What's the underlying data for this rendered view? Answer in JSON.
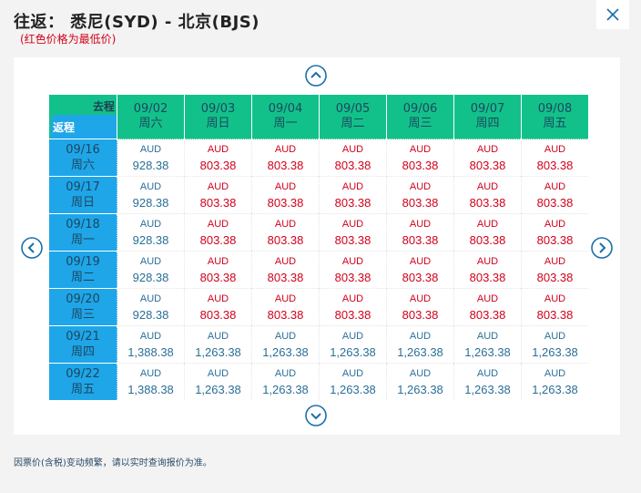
{
  "header": {
    "title": "往返：  悉尼(SYD) - 北京(BJS)",
    "subtitle": "(红色价格为最低价)"
  },
  "colors": {
    "low_price": "#d0021b",
    "normal_price": "#2a6f97",
    "depart_header": "#12c18a",
    "return_header": "#1ea6e8",
    "nav_icon": "#1a6fa8"
  },
  "icons": {
    "close": "close-icon",
    "up": "chevron-up-icon",
    "down": "chevron-down-icon",
    "left": "chevron-left-icon",
    "right": "chevron-right-icon"
  },
  "grid": {
    "depart_label": "去程",
    "return_label": "返程",
    "depart_dates": [
      {
        "date": "09/02",
        "weekday": "周六"
      },
      {
        "date": "09/03",
        "weekday": "周日"
      },
      {
        "date": "09/04",
        "weekday": "周一"
      },
      {
        "date": "09/05",
        "weekday": "周二"
      },
      {
        "date": "09/06",
        "weekday": "周三"
      },
      {
        "date": "09/07",
        "weekday": "周四"
      },
      {
        "date": "09/08",
        "weekday": "周五"
      }
    ],
    "rows": [
      {
        "date": "09/16",
        "weekday": "周六",
        "cells": [
          {
            "cur": "AUD",
            "price": "928.38",
            "low": false
          },
          {
            "cur": "AUD",
            "price": "803.38",
            "low": true
          },
          {
            "cur": "AUD",
            "price": "803.38",
            "low": true
          },
          {
            "cur": "AUD",
            "price": "803.38",
            "low": true
          },
          {
            "cur": "AUD",
            "price": "803.38",
            "low": true
          },
          {
            "cur": "AUD",
            "price": "803.38",
            "low": true
          },
          {
            "cur": "AUD",
            "price": "803.38",
            "low": true
          }
        ]
      },
      {
        "date": "09/17",
        "weekday": "周日",
        "cells": [
          {
            "cur": "AUD",
            "price": "928.38",
            "low": false
          },
          {
            "cur": "AUD",
            "price": "803.38",
            "low": true
          },
          {
            "cur": "AUD",
            "price": "803.38",
            "low": true
          },
          {
            "cur": "AUD",
            "price": "803.38",
            "low": true
          },
          {
            "cur": "AUD",
            "price": "803.38",
            "low": true
          },
          {
            "cur": "AUD",
            "price": "803.38",
            "low": true
          },
          {
            "cur": "AUD",
            "price": "803.38",
            "low": true
          }
        ]
      },
      {
        "date": "09/18",
        "weekday": "周一",
        "cells": [
          {
            "cur": "AUD",
            "price": "928.38",
            "low": false
          },
          {
            "cur": "AUD",
            "price": "803.38",
            "low": true
          },
          {
            "cur": "AUD",
            "price": "803.38",
            "low": true
          },
          {
            "cur": "AUD",
            "price": "803.38",
            "low": true
          },
          {
            "cur": "AUD",
            "price": "803.38",
            "low": true
          },
          {
            "cur": "AUD",
            "price": "803.38",
            "low": true
          },
          {
            "cur": "AUD",
            "price": "803.38",
            "low": true
          }
        ]
      },
      {
        "date": "09/19",
        "weekday": "周二",
        "cells": [
          {
            "cur": "AUD",
            "price": "928.38",
            "low": false
          },
          {
            "cur": "AUD",
            "price": "803.38",
            "low": true
          },
          {
            "cur": "AUD",
            "price": "803.38",
            "low": true
          },
          {
            "cur": "AUD",
            "price": "803.38",
            "low": true
          },
          {
            "cur": "AUD",
            "price": "803.38",
            "low": true
          },
          {
            "cur": "AUD",
            "price": "803.38",
            "low": true
          },
          {
            "cur": "AUD",
            "price": "803.38",
            "low": true
          }
        ]
      },
      {
        "date": "09/20",
        "weekday": "周三",
        "cells": [
          {
            "cur": "AUD",
            "price": "928.38",
            "low": false
          },
          {
            "cur": "AUD",
            "price": "803.38",
            "low": true
          },
          {
            "cur": "AUD",
            "price": "803.38",
            "low": true
          },
          {
            "cur": "AUD",
            "price": "803.38",
            "low": true
          },
          {
            "cur": "AUD",
            "price": "803.38",
            "low": true
          },
          {
            "cur": "AUD",
            "price": "803.38",
            "low": true
          },
          {
            "cur": "AUD",
            "price": "803.38",
            "low": true
          }
        ]
      },
      {
        "date": "09/21",
        "weekday": "周四",
        "cells": [
          {
            "cur": "AUD",
            "price": "1,388.38",
            "low": false
          },
          {
            "cur": "AUD",
            "price": "1,263.38",
            "low": false
          },
          {
            "cur": "AUD",
            "price": "1,263.38",
            "low": false
          },
          {
            "cur": "AUD",
            "price": "1,263.38",
            "low": false
          },
          {
            "cur": "AUD",
            "price": "1,263.38",
            "low": false
          },
          {
            "cur": "AUD",
            "price": "1,263.38",
            "low": false
          },
          {
            "cur": "AUD",
            "price": "1,263.38",
            "low": false
          }
        ]
      },
      {
        "date": "09/22",
        "weekday": "周五",
        "cells": [
          {
            "cur": "AUD",
            "price": "1,388.38",
            "low": false
          },
          {
            "cur": "AUD",
            "price": "1,263.38",
            "low": false
          },
          {
            "cur": "AUD",
            "price": "1,263.38",
            "low": false
          },
          {
            "cur": "AUD",
            "price": "1,263.38",
            "low": false
          },
          {
            "cur": "AUD",
            "price": "1,263.38",
            "low": false
          },
          {
            "cur": "AUD",
            "price": "1,263.38",
            "low": false
          },
          {
            "cur": "AUD",
            "price": "1,263.38",
            "low": false
          }
        ]
      }
    ]
  },
  "footer": {
    "note": "因票价(含税)变动频繁，请以实时查询报价为准。"
  }
}
